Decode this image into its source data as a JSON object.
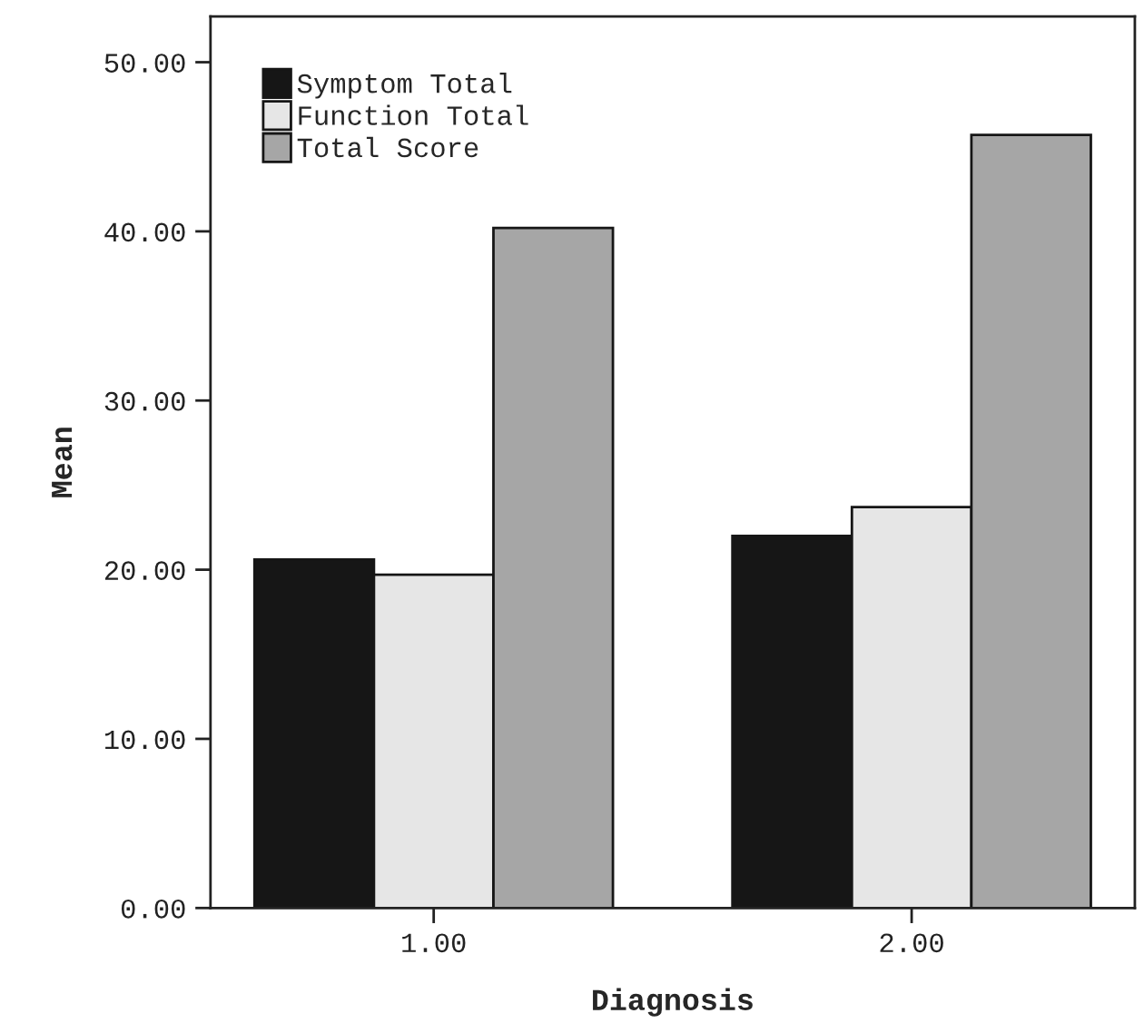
{
  "chart_data": {
    "type": "bar",
    "xlabel": "Diagnosis",
    "ylabel": "Mean",
    "categories": [
      "1.00",
      "2.00"
    ],
    "series": [
      {
        "name": "Symptom Total",
        "color": "#161616",
        "values": [
          20.6,
          22.0
        ]
      },
      {
        "name": "Function Total",
        "color": "#e6e6e6",
        "values": [
          19.7,
          23.7
        ]
      },
      {
        "name": "Total Score",
        "color": "#a6a6a6",
        "values": [
          40.2,
          45.7
        ]
      }
    ],
    "ylim": [
      0,
      52.7
    ],
    "yticks": [
      {
        "value": 0,
        "label": "0.00"
      },
      {
        "value": 10,
        "label": "10.00"
      },
      {
        "value": 20,
        "label": "20.00"
      },
      {
        "value": 30,
        "label": "30.00"
      },
      {
        "value": 40,
        "label": "40.00"
      },
      {
        "value": 50,
        "label": "50.00"
      }
    ],
    "grid": false,
    "legend": "top left"
  }
}
